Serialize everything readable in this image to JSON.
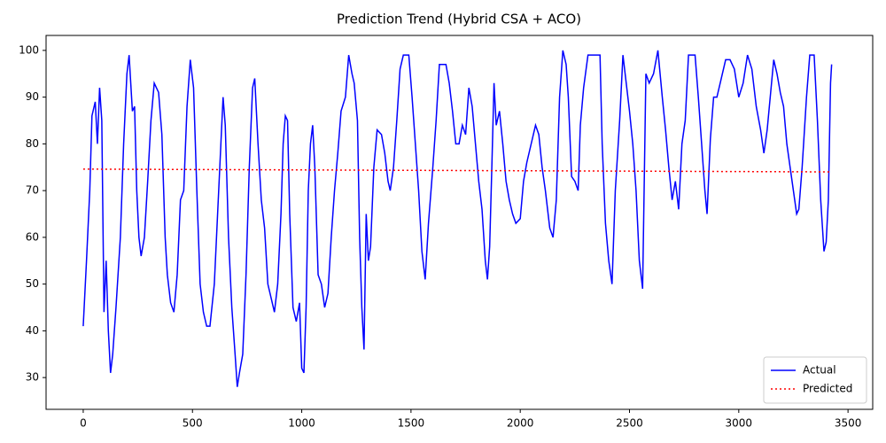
{
  "chart_data": {
    "type": "line",
    "title": "Prediction Trend (Hybrid CSA + ACO)",
    "xlim": [
      -170,
      3613
    ],
    "ylim": [
      23.2,
      103.2
    ],
    "xticks": [
      0,
      500,
      1000,
      1500,
      2000,
      2500,
      3000,
      3500
    ],
    "yticks": [
      30,
      40,
      50,
      60,
      70,
      80,
      90,
      100
    ],
    "legend": "lower right",
    "series": [
      {
        "name": "Actual",
        "color": "#0000ff",
        "style": "solid",
        "x": [
          0,
          15,
          30,
          40,
          55,
          65,
          75,
          85,
          95,
          105,
          115,
          125,
          135,
          150,
          170,
          185,
          200,
          210,
          225,
          235,
          245,
          255,
          265,
          280,
          295,
          310,
          325,
          345,
          360,
          375,
          385,
          400,
          415,
          430,
          445,
          460,
          475,
          490,
          505,
          520,
          535,
          550,
          565,
          580,
          600,
          615,
          630,
          640,
          650,
          665,
          680,
          695,
          705,
          715,
          730,
          745,
          760,
          775,
          785,
          800,
          815,
          830,
          845,
          860,
          875,
          890,
          905,
          915,
          925,
          935,
          945,
          960,
          975,
          990,
          1000,
          1010,
          1020,
          1030,
          1040,
          1050,
          1060,
          1075,
          1090,
          1105,
          1120,
          1135,
          1150,
          1165,
          1180,
          1200,
          1215,
          1230,
          1240,
          1255,
          1265,
          1275,
          1285,
          1295,
          1305,
          1315,
          1330,
          1345,
          1365,
          1380,
          1395,
          1405,
          1420,
          1435,
          1450,
          1465,
          1490,
          1505,
          1520,
          1535,
          1550,
          1565,
          1580,
          1600,
          1615,
          1630,
          1660,
          1675,
          1690,
          1705,
          1720,
          1735,
          1750,
          1765,
          1780,
          1795,
          1810,
          1825,
          1840,
          1850,
          1860,
          1870,
          1880,
          1890,
          1905,
          1920,
          1935,
          1950,
          1965,
          1980,
          2000,
          2015,
          2030,
          2050,
          2070,
          2085,
          2100,
          2115,
          2125,
          2135,
          2150,
          2165,
          2180,
          2195,
          2210,
          2220,
          2235,
          2250,
          2265,
          2275,
          2290,
          2310,
          2340,
          2365,
          2375,
          2390,
          2405,
          2420,
          2435,
          2455,
          2470,
          2485,
          2500,
          2515,
          2530,
          2545,
          2560,
          2575,
          2590,
          2610,
          2630,
          2650,
          2665,
          2680,
          2695,
          2710,
          2725,
          2740,
          2755,
          2770,
          2800,
          2815,
          2830,
          2845,
          2855,
          2870,
          2885,
          2900,
          2920,
          2940,
          2960,
          2980,
          3000,
          3020,
          3040,
          3060,
          3080,
          3100,
          3115,
          3130,
          3150,
          3160,
          3175,
          3190,
          3205,
          3220,
          3235,
          3250,
          3265,
          3275,
          3290,
          3310,
          3325,
          3345,
          3360,
          3375,
          3390,
          3400,
          3410,
          3420,
          3425
        ],
        "values": [
          41,
          55,
          70,
          86,
          89,
          80,
          92,
          85,
          44,
          55,
          40,
          31,
          35,
          45,
          60,
          80,
          95,
          99,
          87,
          88,
          70,
          60,
          56,
          60,
          72,
          85,
          93,
          91,
          82,
          60,
          52,
          46,
          44,
          52,
          68,
          70,
          88,
          98,
          92,
          70,
          50,
          44,
          41,
          41,
          50,
          65,
          80,
          90,
          84,
          60,
          45,
          35,
          28,
          31,
          35,
          52,
          75,
          92,
          94,
          80,
          68,
          62,
          50,
          47,
          44,
          50,
          65,
          80,
          86,
          85,
          65,
          45,
          42,
          46,
          32,
          31,
          45,
          70,
          80,
          84,
          75,
          52,
          50,
          45,
          48,
          60,
          70,
          78,
          87,
          90,
          99,
          95,
          93,
          85,
          60,
          45,
          36,
          65,
          55,
          58,
          75,
          83,
          82,
          78,
          72,
          70,
          75,
          85,
          96,
          99,
          99,
          90,
          80,
          70,
          57,
          51,
          63,
          75,
          85,
          97,
          97,
          93,
          87,
          80,
          80,
          84,
          82,
          92,
          88,
          80,
          72,
          66,
          55,
          51,
          58,
          75,
          93,
          84,
          87,
          80,
          72,
          68,
          65,
          63,
          64,
          72,
          76,
          80,
          84,
          82,
          75,
          70,
          66,
          62,
          60,
          68,
          90,
          100,
          97,
          90,
          73,
          72,
          70,
          84,
          92,
          99,
          99,
          99,
          80,
          63,
          55,
          50,
          70,
          85,
          99,
          93,
          87,
          80,
          70,
          55,
          49,
          95,
          93,
          95,
          100,
          90,
          83,
          75,
          68,
          72,
          66,
          80,
          85,
          99,
          99,
          90,
          80,
          70,
          65,
          81,
          90,
          90,
          94,
          98,
          98,
          96,
          90,
          93,
          99,
          96,
          88,
          83,
          78,
          83,
          93,
          98,
          95,
          91,
          88,
          80,
          75,
          70,
          65,
          66,
          75,
          90,
          99,
          99,
          85,
          68,
          57,
          59,
          68,
          93,
          97
        ]
      },
      {
        "name": "Predicted",
        "color": "#ff0000",
        "style": "dotted",
        "x": [
          0,
          3420
        ],
        "values": [
          74.6,
          74.0
        ]
      }
    ]
  }
}
